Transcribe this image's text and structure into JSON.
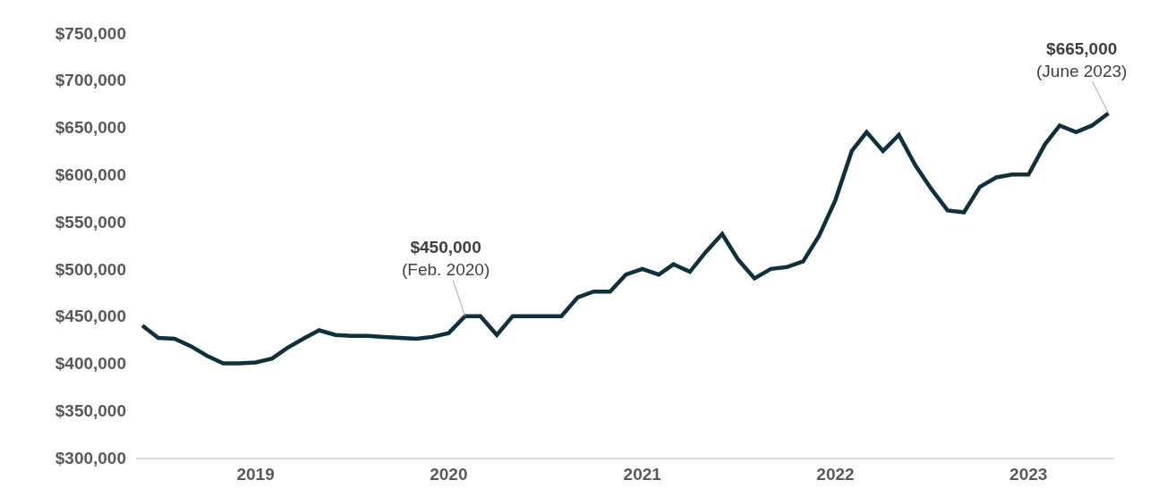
{
  "chart_data": {
    "type": "line",
    "x": [
      "2018-06",
      "2018-07",
      "2018-08",
      "2018-09",
      "2018-10",
      "2018-11",
      "2018-12",
      "2019-01",
      "2019-02",
      "2019-03",
      "2019-04",
      "2019-05",
      "2019-06",
      "2019-07",
      "2019-08",
      "2019-09",
      "2019-10",
      "2019-11",
      "2019-12",
      "2020-01",
      "2020-02",
      "2020-03",
      "2020-04",
      "2020-05",
      "2020-06",
      "2020-07",
      "2020-08",
      "2020-09",
      "2020-10",
      "2020-11",
      "2020-12",
      "2021-01",
      "2021-02",
      "2021-03",
      "2021-04",
      "2021-05",
      "2021-06",
      "2021-07",
      "2021-08",
      "2021-09",
      "2021-10",
      "2021-11",
      "2021-12",
      "2022-01",
      "2022-02",
      "2022-03",
      "2022-04",
      "2022-05",
      "2022-06",
      "2022-07",
      "2022-08",
      "2022-09",
      "2022-10",
      "2022-11",
      "2022-12",
      "2023-01",
      "2023-02",
      "2023-03",
      "2023-04",
      "2023-05",
      "2023-06"
    ],
    "series": [
      {
        "color": "#10303c",
        "values": [
          440000,
          427000,
          426000,
          418000,
          408000,
          400000,
          400000,
          401000,
          405000,
          416000,
          426000,
          435000,
          430000,
          429000,
          429000,
          428000,
          427000,
          426000,
          428000,
          432000,
          450000,
          450000,
          430000,
          450000,
          450000,
          450000,
          450000,
          470000,
          476000,
          476000,
          494000,
          500000,
          494000,
          505000,
          497000,
          518000,
          537000,
          510000,
          490000,
          500000,
          502000,
          508000,
          535000,
          573000,
          625000,
          645000,
          625000,
          642000,
          610000,
          585000,
          562000,
          560000,
          587000,
          597000,
          600000,
          600000,
          632000,
          652000,
          645000,
          652000,
          665000
        ]
      }
    ],
    "xlim": [
      "2018-05-20",
      "2023-06-12"
    ],
    "xticks": [
      {
        "value": "2019-01-01",
        "label": "2019"
      },
      {
        "value": "2020-01-01",
        "label": "2020"
      },
      {
        "value": "2021-01-01",
        "label": "2021"
      },
      {
        "value": "2022-01-01",
        "label": "2022"
      },
      {
        "value": "2023-01-01",
        "label": "2023"
      }
    ],
    "ylim": [
      300000,
      750000
    ],
    "yticks": [
      {
        "value": 300000,
        "label": "$300,000"
      },
      {
        "value": 350000,
        "label": "$350,000"
      },
      {
        "value": 400000,
        "label": "$400,000"
      },
      {
        "value": 450000,
        "label": "$450,000"
      },
      {
        "value": 500000,
        "label": "$500,000"
      },
      {
        "value": 550000,
        "label": "$550,000"
      },
      {
        "value": 600000,
        "label": "$600,000"
      },
      {
        "value": 650000,
        "label": "$650,000"
      },
      {
        "value": 700000,
        "label": "$700,000"
      },
      {
        "value": 750000,
        "label": "$750,000"
      }
    ],
    "grid": false,
    "marker": "none",
    "line_style": "solid",
    "annotations": [
      {
        "text": "$450,000\n(Feb. 2020)",
        "x": "2020-02",
        "y": 450000
      },
      {
        "text": "$665,000\n(June 2023)",
        "x": "2023-06",
        "y": 665000
      }
    ]
  }
}
